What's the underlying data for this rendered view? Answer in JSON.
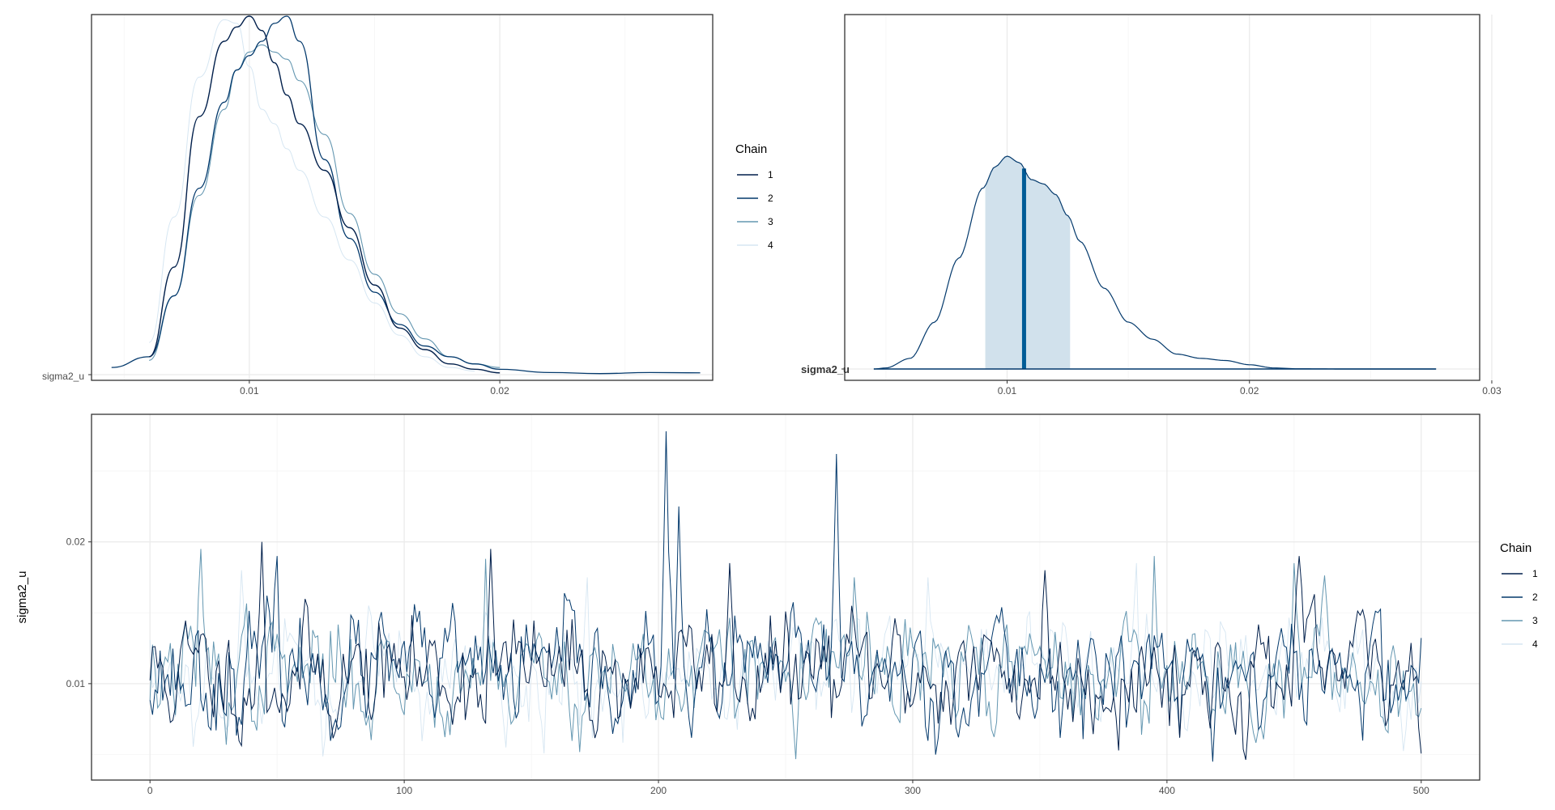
{
  "parameter": "sigma2_u",
  "legend": {
    "title": "Chain",
    "chains": [
      "1",
      "2",
      "3",
      "4"
    ]
  },
  "colors": {
    "chain_1": "#011f4b",
    "chain_2": "#03396c",
    "chain_3": "#6497b1",
    "chain_4": "#d6e6f2",
    "interval_fill": "#d1e1ec",
    "median_line": "#005b96",
    "density_line": "#03396c"
  },
  "chart_data": [
    {
      "type": "line",
      "title": "",
      "panel": "overlaid density per chain",
      "xlabel": "",
      "ylabel": "",
      "xlim": [
        0.0037,
        0.0285
      ],
      "xticks": [
        0.01,
        0.02
      ],
      "xtick_labels": [
        "0.01",
        "0.02"
      ],
      "ytick_labels": [
        "sigma2_u"
      ],
      "x": [
        0.0045,
        0.006,
        0.007,
        0.008,
        0.009,
        0.0095,
        0.01,
        0.0105,
        0.011,
        0.0115,
        0.012,
        0.013,
        0.014,
        0.015,
        0.016,
        0.017,
        0.018,
        0.019,
        0.02,
        0.022,
        0.024,
        0.026,
        0.028
      ],
      "series": [
        {
          "name": "1",
          "values": [
            null,
            0.05,
            0.3,
            0.72,
            0.93,
            0.97,
            1.0,
            0.96,
            0.87,
            0.78,
            0.7,
            0.57,
            0.41,
            0.25,
            0.13,
            0.07,
            0.03,
            0.015,
            0.005,
            null,
            null,
            null,
            null
          ]
        },
        {
          "name": "2",
          "values": [
            0.02,
            0.05,
            0.22,
            0.52,
            0.76,
            0.85,
            0.89,
            0.93,
            0.98,
            1.0,
            0.93,
            0.6,
            0.38,
            0.23,
            0.14,
            0.08,
            0.05,
            0.03,
            0.015,
            0.006,
            0.003,
            0.006,
            0.005
          ]
        },
        {
          "name": "3",
          "values": [
            null,
            0.04,
            0.22,
            0.5,
            0.74,
            0.85,
            0.9,
            0.92,
            0.9,
            0.88,
            0.82,
            0.67,
            0.45,
            0.28,
            0.17,
            0.1,
            0.05,
            0.03,
            0.02,
            null,
            null,
            null,
            null
          ]
        },
        {
          "name": "4",
          "values": [
            null,
            0.09,
            0.44,
            0.83,
            0.99,
            0.98,
            0.86,
            0.74,
            0.7,
            0.63,
            0.57,
            0.44,
            0.32,
            0.2,
            0.11,
            0.05,
            0.02,
            0.01,
            null,
            null,
            null,
            null,
            null
          ]
        }
      ]
    },
    {
      "type": "area",
      "title": "",
      "panel": "combined density with central interval",
      "xlabel": "",
      "ylabel": "",
      "xlim": [
        0.0033,
        0.0295
      ],
      "xticks": [
        0.01,
        0.02,
        0.03
      ],
      "xtick_labels": [
        "0.01",
        "0.02",
        "0.03"
      ],
      "ytick_labels": [
        "sigma2_u"
      ],
      "x": [
        0.0045,
        0.005,
        0.006,
        0.007,
        0.008,
        0.009,
        0.0095,
        0.01,
        0.0105,
        0.011,
        0.0115,
        0.012,
        0.0125,
        0.013,
        0.014,
        0.015,
        0.016,
        0.017,
        0.018,
        0.019,
        0.02,
        0.021,
        0.022,
        0.024,
        0.026,
        0.0277
      ],
      "density": [
        0.0,
        0.005,
        0.05,
        0.22,
        0.52,
        0.85,
        0.95,
        1.0,
        0.97,
        0.89,
        0.87,
        0.82,
        0.72,
        0.6,
        0.38,
        0.22,
        0.14,
        0.07,
        0.05,
        0.04,
        0.02,
        0.005,
        0.001,
        0.0,
        0.0,
        0.0
      ],
      "interval": [
        0.0091,
        0.0126
      ],
      "median": 0.0107,
      "xrange_line": [
        0.0045,
        0.0277
      ]
    },
    {
      "type": "line",
      "title": "",
      "panel": "trace plot",
      "xlabel": "",
      "ylabel": "sigma2_u",
      "xlim": [
        -23,
        523
      ],
      "ylim": [
        0.0032,
        0.029
      ],
      "xticks": [
        0,
        100,
        200,
        300,
        400,
        500
      ],
      "xtick_labels": [
        "0",
        "100",
        "200",
        "300",
        "400",
        "500"
      ],
      "yticks": [
        0.01,
        0.02
      ],
      "ytick_labels": [
        "0.01",
        "0.02"
      ],
      "iterations": [
        0,
        500
      ],
      "series": [
        {
          "name": "1",
          "seed": 11,
          "spikes": [
            [
              44,
              0.02
            ],
            [
              134,
              0.0195
            ],
            [
              228,
              0.0185
            ],
            [
              352,
              0.018
            ],
            [
              452,
              0.019
            ]
          ]
        },
        {
          "name": "2",
          "seed": 23,
          "spikes": [
            [
              203,
              0.0278
            ],
            [
              208,
              0.0225
            ],
            [
              270,
              0.0262
            ],
            [
              50,
              0.019
            ],
            [
              418,
              0.0045
            ]
          ]
        },
        {
          "name": "3",
          "seed": 37,
          "spikes": [
            [
              20,
              0.0195
            ],
            [
              132,
              0.0188
            ],
            [
              277,
              0.0175
            ],
            [
              395,
              0.019
            ],
            [
              450,
              0.0185
            ]
          ]
        },
        {
          "name": "4",
          "seed": 53,
          "spikes": [
            [
              36,
              0.018
            ],
            [
              172,
              0.0175
            ],
            [
              306,
              0.0175
            ],
            [
              388,
              0.0185
            ],
            [
              140,
              0.0055
            ]
          ]
        }
      ]
    }
  ]
}
